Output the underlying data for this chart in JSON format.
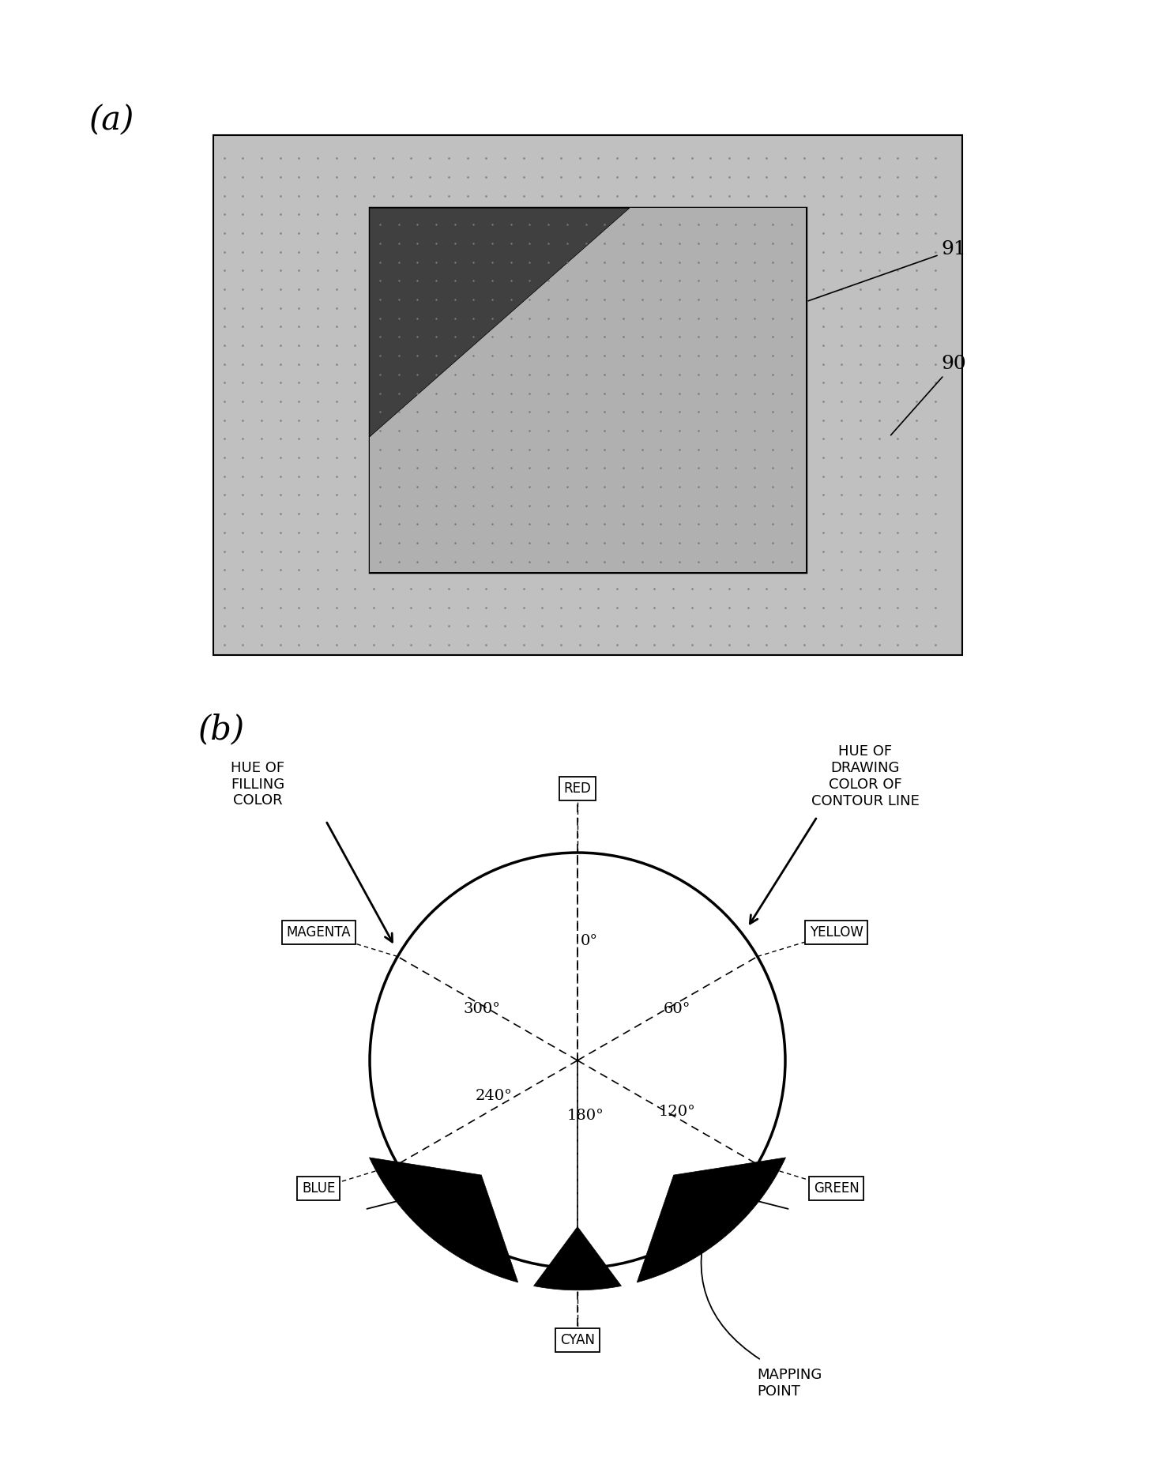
{
  "fig_width": 14.62,
  "fig_height": 18.73,
  "bg_color": "#ffffff",
  "part_a": {
    "label": "(a)",
    "outer_color": "#c0c0c0",
    "inner_color": "#909090",
    "inner_dark_color": "#606060",
    "label_91": "91",
    "label_90": "90"
  },
  "part_b": {
    "label": "(b)",
    "circle_lw": 2.2,
    "angle_labels": [
      "0°",
      "60°",
      "120°",
      "180°",
      "240°",
      "300°"
    ],
    "angle_degrees": [
      90,
      30,
      -30,
      -90,
      -150,
      150
    ],
    "color_names": [
      "RED",
      "YELLOW",
      "GREEN",
      "CYAN",
      "BLUE",
      "MAGENTA"
    ],
    "color_angles": [
      90,
      30,
      -30,
      -90,
      -150,
      150
    ],
    "hue_filling_text": "HUE OF\nFILLING\nCOLOR",
    "hue_contour_text": "HUE OF\nDRAWING\nCOLOR OF\nCONTOUR LINE",
    "mapping_point_text": "MAPPING\nPOINT"
  }
}
